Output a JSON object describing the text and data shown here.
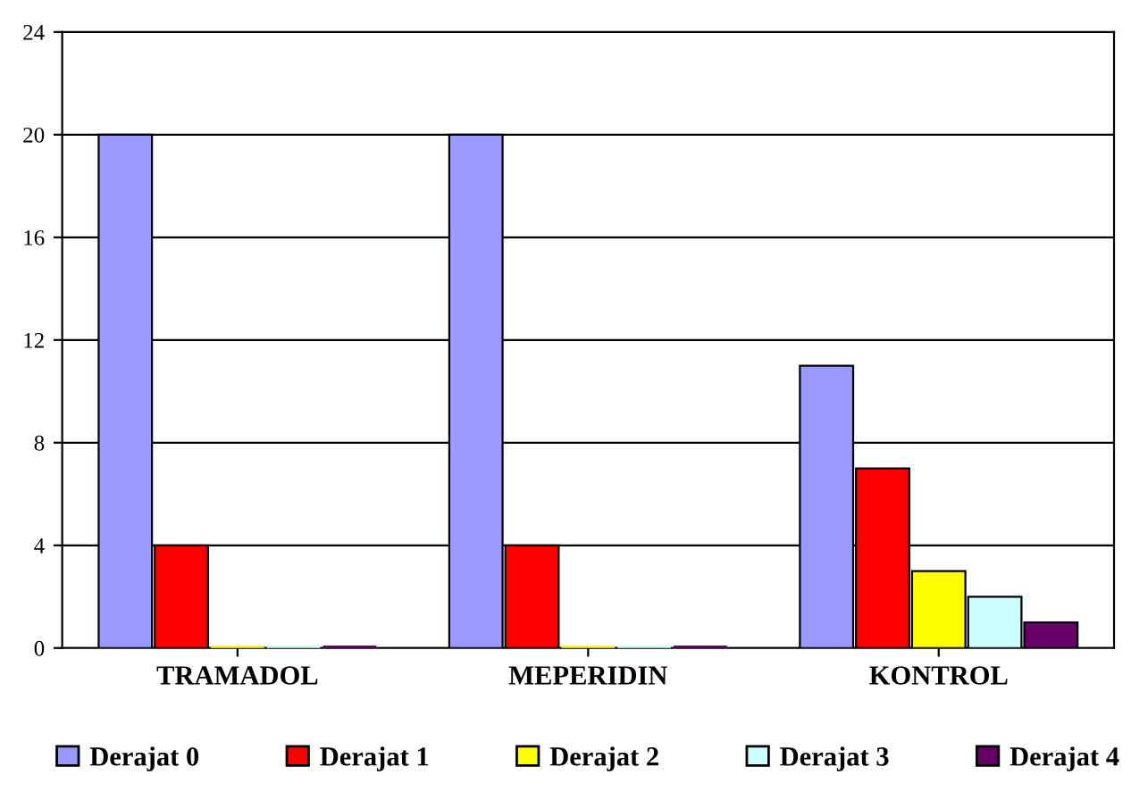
{
  "chart_data": {
    "type": "bar",
    "categories": [
      "TRAMADOL",
      "MEPERIDIN",
      "KONTROL"
    ],
    "series": [
      {
        "name": "Derajat 0",
        "color": "#9999ff",
        "values": [
          20,
          20,
          11
        ]
      },
      {
        "name": "Derajat 1",
        "color": "#ff0000",
        "values": [
          4,
          4,
          7
        ]
      },
      {
        "name": "Derajat 2",
        "color": "#ffff00",
        "values": [
          0,
          0,
          3
        ]
      },
      {
        "name": "Derajat 3",
        "color": "#ccffff",
        "values": [
          0,
          0,
          2
        ]
      },
      {
        "name": "Derajat 4",
        "color": "#660066",
        "values": [
          0,
          0,
          1
        ]
      }
    ],
    "ylim": [
      0,
      24
    ],
    "yticks": [
      0,
      4,
      8,
      12,
      16,
      20,
      24
    ],
    "grid": "y",
    "legend": "bottom"
  }
}
